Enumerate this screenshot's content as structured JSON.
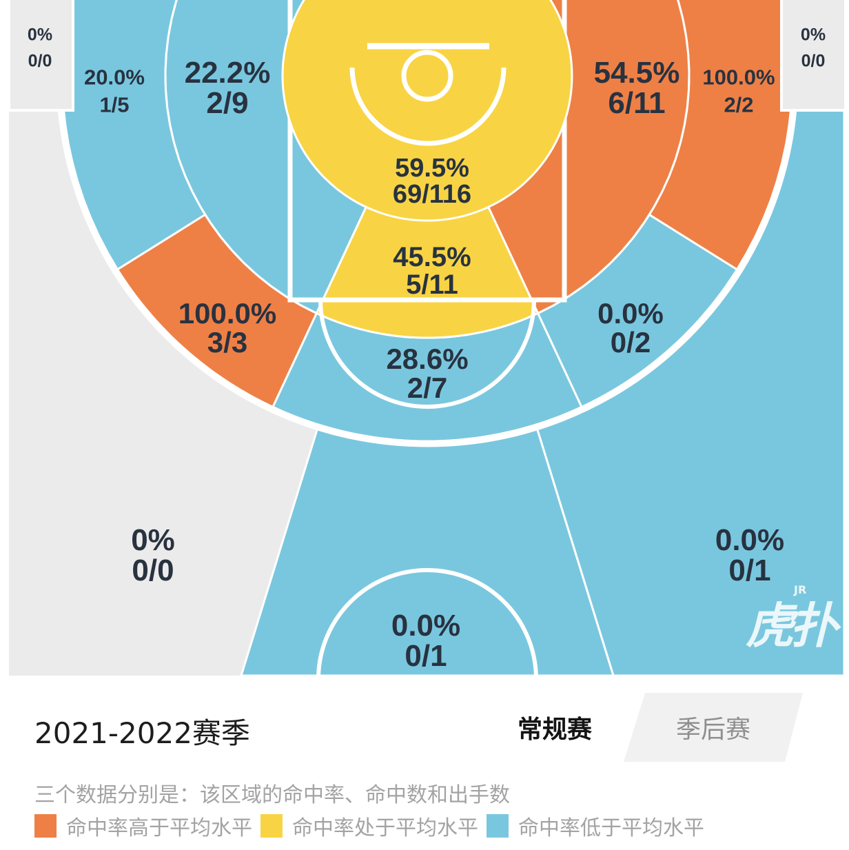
{
  "colors": {
    "above": "#ee8046",
    "average": "#f8d444",
    "below": "#79c7de",
    "none": "#ecebeb",
    "text": "#283240"
  },
  "chart_data": {
    "type": "heatmap",
    "zones": [
      {
        "pct": "0%",
        "made_attempts": "0/0",
        "level": "none"
      },
      {
        "pct": "0%",
        "made_attempts": "0/0",
        "level": "none"
      },
      {
        "pct": "20.0%",
        "made_attempts": "1/5",
        "level": "below"
      },
      {
        "pct": "22.2%",
        "made_attempts": "2/9",
        "level": "below"
      },
      {
        "pct": "59.5%",
        "made_attempts": "69/116",
        "level": "average"
      },
      {
        "pct": "54.5%",
        "made_attempts": "6/11",
        "level": "above"
      },
      {
        "pct": "100.0%",
        "made_attempts": "2/2",
        "level": "above"
      },
      {
        "pct": "45.5%",
        "made_attempts": "5/11",
        "level": "average"
      },
      {
        "pct": "100.0%",
        "made_attempts": "3/3",
        "level": "above"
      },
      {
        "pct": "0.0%",
        "made_attempts": "0/2",
        "level": "below"
      },
      {
        "pct": "28.6%",
        "made_attempts": "2/7",
        "level": "below"
      },
      {
        "pct": "0%",
        "made_attempts": "0/0",
        "level": "none"
      },
      {
        "pct": "0.0%",
        "made_attempts": "0/1",
        "level": "below"
      },
      {
        "pct": "0.0%",
        "made_attempts": "0/1",
        "level": "below"
      }
    ]
  },
  "logo": "虎扑",
  "logo_mark": "JR",
  "season_title": "2021-2022赛季",
  "tabs": [
    {
      "label": "常规赛",
      "active": true
    },
    {
      "label": "季后赛",
      "active": false
    }
  ],
  "note": "三个数据分别是：该区域的命中率、命中数和出手数",
  "legend": [
    {
      "label": "命中率高于平均水平",
      "color": "#ee8046"
    },
    {
      "label": "命中率处于平均水平",
      "color": "#f8d444"
    },
    {
      "label": "命中率低于平均水平",
      "color": "#79c7de"
    }
  ]
}
